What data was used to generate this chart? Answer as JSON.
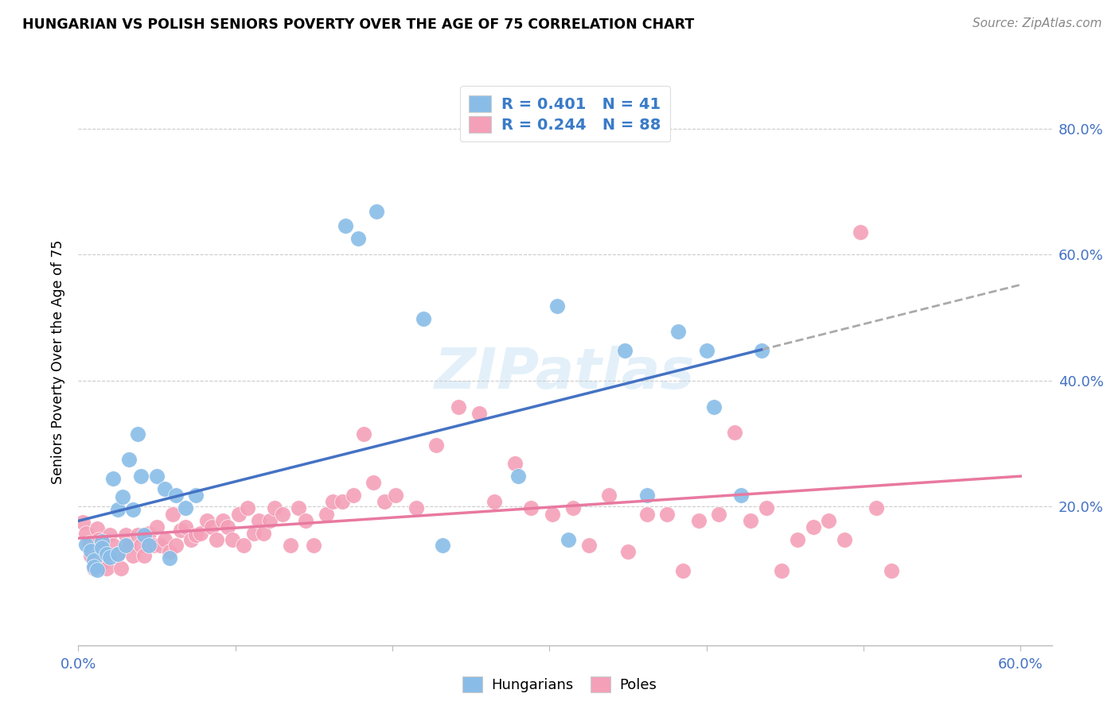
{
  "title": "HUNGARIAN VS POLISH SENIORS POVERTY OVER THE AGE OF 75 CORRELATION CHART",
  "source": "Source: ZipAtlas.com",
  "ylabel": "Seniors Poverty Over the Age of 75",
  "xlim": [
    0.0,
    0.62
  ],
  "ylim": [
    -0.02,
    0.88
  ],
  "right_ytick_labels": [
    "20.0%",
    "40.0%",
    "60.0%",
    "80.0%"
  ],
  "right_ytick_vals": [
    0.2,
    0.4,
    0.6,
    0.8
  ],
  "hungarian_color": "#89bde8",
  "polish_color": "#f4a0b8",
  "hungarian_line_color": "#4472c4",
  "polish_line_color": "#e879a0",
  "dash_color": "#aaaaaa",
  "legend_label_color": "#3a7bc8",
  "hungarian_R": 0.401,
  "hungarian_N": 41,
  "polish_R": 0.244,
  "polish_N": 88,
  "watermark_text": "ZIPatlas",
  "hungarian_x": [
    0.005,
    0.008,
    0.01,
    0.01,
    0.012,
    0.015,
    0.015,
    0.018,
    0.02,
    0.022,
    0.025,
    0.025,
    0.028,
    0.03,
    0.032,
    0.035,
    0.038,
    0.04,
    0.042,
    0.045,
    0.05,
    0.055,
    0.058,
    0.062,
    0.068,
    0.075,
    0.17,
    0.178,
    0.19,
    0.22,
    0.232,
    0.28,
    0.305,
    0.312,
    0.348,
    0.362,
    0.382,
    0.4,
    0.405,
    0.422,
    0.435
  ],
  "hungarian_y": [
    0.14,
    0.13,
    0.115,
    0.105,
    0.1,
    0.145,
    0.135,
    0.125,
    0.12,
    0.245,
    0.195,
    0.125,
    0.215,
    0.138,
    0.275,
    0.195,
    0.315,
    0.248,
    0.155,
    0.138,
    0.248,
    0.228,
    0.118,
    0.218,
    0.198,
    0.218,
    0.645,
    0.625,
    0.668,
    0.498,
    0.138,
    0.248,
    0.518,
    0.148,
    0.448,
    0.218,
    0.478,
    0.448,
    0.358,
    0.218,
    0.448
  ],
  "polish_x": [
    0.003,
    0.005,
    0.007,
    0.008,
    0.01,
    0.012,
    0.013,
    0.015,
    0.016,
    0.018,
    0.02,
    0.022,
    0.025,
    0.027,
    0.03,
    0.032,
    0.035,
    0.038,
    0.04,
    0.042,
    0.045,
    0.048,
    0.05,
    0.052,
    0.055,
    0.058,
    0.06,
    0.062,
    0.065,
    0.068,
    0.072,
    0.075,
    0.078,
    0.082,
    0.085,
    0.088,
    0.092,
    0.095,
    0.098,
    0.102,
    0.105,
    0.108,
    0.112,
    0.115,
    0.118,
    0.122,
    0.125,
    0.13,
    0.135,
    0.14,
    0.145,
    0.15,
    0.158,
    0.162,
    0.168,
    0.175,
    0.182,
    0.188,
    0.195,
    0.202,
    0.215,
    0.228,
    0.242,
    0.255,
    0.265,
    0.278,
    0.288,
    0.302,
    0.315,
    0.325,
    0.338,
    0.35,
    0.362,
    0.375,
    0.385,
    0.395,
    0.408,
    0.418,
    0.428,
    0.438,
    0.448,
    0.458,
    0.468,
    0.478,
    0.488,
    0.498,
    0.508,
    0.518
  ],
  "polish_y": [
    0.175,
    0.158,
    0.142,
    0.122,
    0.102,
    0.165,
    0.148,
    0.132,
    0.112,
    0.102,
    0.155,
    0.138,
    0.125,
    0.102,
    0.155,
    0.138,
    0.122,
    0.155,
    0.138,
    0.122,
    0.158,
    0.138,
    0.168,
    0.138,
    0.148,
    0.128,
    0.188,
    0.138,
    0.162,
    0.168,
    0.148,
    0.155,
    0.158,
    0.178,
    0.168,
    0.148,
    0.178,
    0.168,
    0.148,
    0.188,
    0.138,
    0.198,
    0.158,
    0.178,
    0.158,
    0.178,
    0.198,
    0.188,
    0.138,
    0.198,
    0.178,
    0.138,
    0.188,
    0.208,
    0.208,
    0.218,
    0.315,
    0.238,
    0.208,
    0.218,
    0.198,
    0.298,
    0.358,
    0.348,
    0.208,
    0.268,
    0.198,
    0.188,
    0.198,
    0.138,
    0.218,
    0.128,
    0.188,
    0.188,
    0.098,
    0.178,
    0.188,
    0.318,
    0.178,
    0.198,
    0.098,
    0.148,
    0.168,
    0.178,
    0.148,
    0.635,
    0.198,
    0.098
  ]
}
